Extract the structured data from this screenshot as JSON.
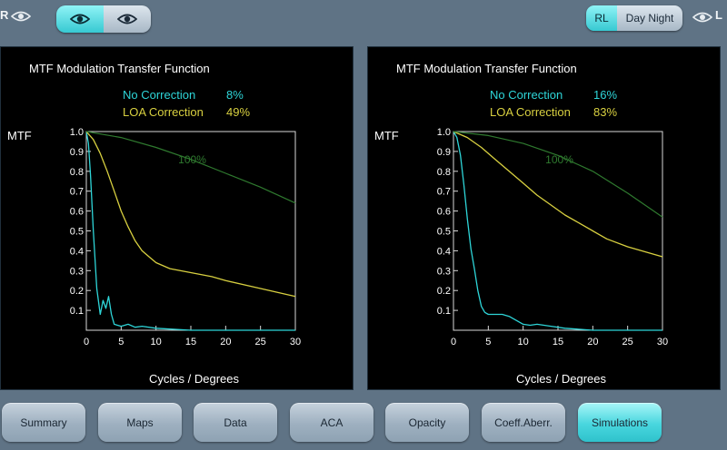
{
  "topbar": {
    "right_eye_label": "R",
    "left_eye_label": "L",
    "eye_toggle": {
      "selected": "right"
    },
    "rl_label": "RL",
    "day_night_label": "Day Night"
  },
  "panels": [
    {
      "title": "MTF Modulation Transfer Function",
      "legend": [
        {
          "label": "No Correction",
          "value": "8%"
        },
        {
          "label": "LOA Correction",
          "value": "49%"
        }
      ],
      "ref_label": "100%",
      "ylabel": "MTF",
      "xlabel": "Cycles / Degrees"
    },
    {
      "title": "MTF Modulation Transfer Function",
      "legend": [
        {
          "label": "No Correction",
          "value": "16%"
        },
        {
          "label": "LOA Correction",
          "value": "83%"
        }
      ],
      "ref_label": "100%",
      "ylabel": "MTF",
      "xlabel": "Cycles / Degrees"
    }
  ],
  "chart_data": [
    {
      "type": "line",
      "title": "MTF Modulation Transfer Function",
      "xlabel": "Cycles / Degrees",
      "ylabel": "MTF",
      "xlim": [
        0,
        30
      ],
      "ylim": [
        0,
        1.0
      ],
      "x_ticks": [
        0,
        5,
        10,
        15,
        20,
        25,
        30
      ],
      "y_ticks": [
        0.1,
        0.2,
        0.3,
        0.4,
        0.5,
        0.6,
        0.7,
        0.8,
        0.9,
        1.0
      ],
      "grid": false,
      "colors": {
        "no_correction": "#2ed5d8",
        "loa_correction": "#d8d040",
        "reference": "#2f7a2f"
      },
      "series": [
        {
          "name": "No Correction",
          "key": "no_correction",
          "x": [
            0,
            0.3,
            0.6,
            1.0,
            1.5,
            2.0,
            2.4,
            2.8,
            3.2,
            3.6,
            4.0,
            5.0,
            6.0,
            7.0,
            8.0,
            10.0,
            15.0,
            20.0,
            25.0,
            30.0
          ],
          "y": [
            1.0,
            0.94,
            0.78,
            0.5,
            0.21,
            0.08,
            0.15,
            0.11,
            0.17,
            0.08,
            0.03,
            0.02,
            0.03,
            0.015,
            0.02,
            0.01,
            0.0,
            0.0,
            0.0,
            0.0
          ]
        },
        {
          "name": "LOA Correction",
          "key": "loa_correction",
          "x": [
            0,
            1,
            2,
            3,
            4,
            5,
            6,
            7,
            8,
            9,
            10,
            12,
            15,
            18,
            20,
            25,
            30
          ],
          "y": [
            1.0,
            0.96,
            0.89,
            0.8,
            0.7,
            0.6,
            0.52,
            0.45,
            0.4,
            0.37,
            0.34,
            0.31,
            0.29,
            0.27,
            0.25,
            0.21,
            0.17
          ]
        },
        {
          "name": "100%",
          "key": "reference",
          "x": [
            0,
            5,
            10,
            15,
            20,
            25,
            30
          ],
          "y": [
            1.0,
            0.97,
            0.92,
            0.86,
            0.79,
            0.72,
            0.64
          ]
        }
      ]
    },
    {
      "type": "line",
      "title": "MTF Modulation Transfer Function",
      "xlabel": "Cycles / Degrees",
      "ylabel": "MTF",
      "xlim": [
        0,
        30
      ],
      "ylim": [
        0,
        1.0
      ],
      "x_ticks": [
        0,
        5,
        10,
        15,
        20,
        25,
        30
      ],
      "y_ticks": [
        0.1,
        0.2,
        0.3,
        0.4,
        0.5,
        0.6,
        0.7,
        0.8,
        0.9,
        1.0
      ],
      "grid": false,
      "colors": {
        "no_correction": "#2ed5d8",
        "loa_correction": "#d8d040",
        "reference": "#2f7a2f"
      },
      "series": [
        {
          "name": "No Correction",
          "key": "no_correction",
          "x": [
            0,
            0.5,
            1.0,
            1.5,
            2.0,
            2.5,
            3.0,
            3.5,
            4.0,
            4.5,
            5.0,
            6.0,
            7.0,
            8.0,
            9.0,
            10.0,
            11.0,
            12.0,
            14.0,
            16.0,
            20.0,
            25.0,
            30.0
          ],
          "y": [
            1.0,
            0.97,
            0.88,
            0.73,
            0.56,
            0.41,
            0.31,
            0.2,
            0.12,
            0.09,
            0.08,
            0.08,
            0.08,
            0.07,
            0.05,
            0.03,
            0.025,
            0.03,
            0.02,
            0.01,
            0.0,
            0.0,
            0.0
          ]
        },
        {
          "name": "LOA Correction",
          "key": "loa_correction",
          "x": [
            0,
            2,
            4,
            6,
            8,
            10,
            12,
            14,
            16,
            18,
            20,
            22,
            25,
            28,
            30
          ],
          "y": [
            1.0,
            0.97,
            0.92,
            0.86,
            0.8,
            0.74,
            0.68,
            0.63,
            0.58,
            0.54,
            0.5,
            0.46,
            0.42,
            0.39,
            0.37
          ]
        },
        {
          "name": "100%",
          "key": "reference",
          "x": [
            0,
            5,
            10,
            15,
            20,
            25,
            30
          ],
          "y": [
            1.0,
            0.98,
            0.94,
            0.88,
            0.8,
            0.69,
            0.57
          ]
        }
      ]
    }
  ],
  "nav": {
    "buttons": [
      {
        "label": "Summary",
        "active": false
      },
      {
        "label": "Maps",
        "active": false
      },
      {
        "label": "Data",
        "active": false
      },
      {
        "label": "ACA",
        "active": false
      },
      {
        "label": "Opacity",
        "active": false
      },
      {
        "label": "Coeff.Aberr.",
        "active": false
      },
      {
        "label": "Simulations",
        "active": true
      }
    ]
  }
}
